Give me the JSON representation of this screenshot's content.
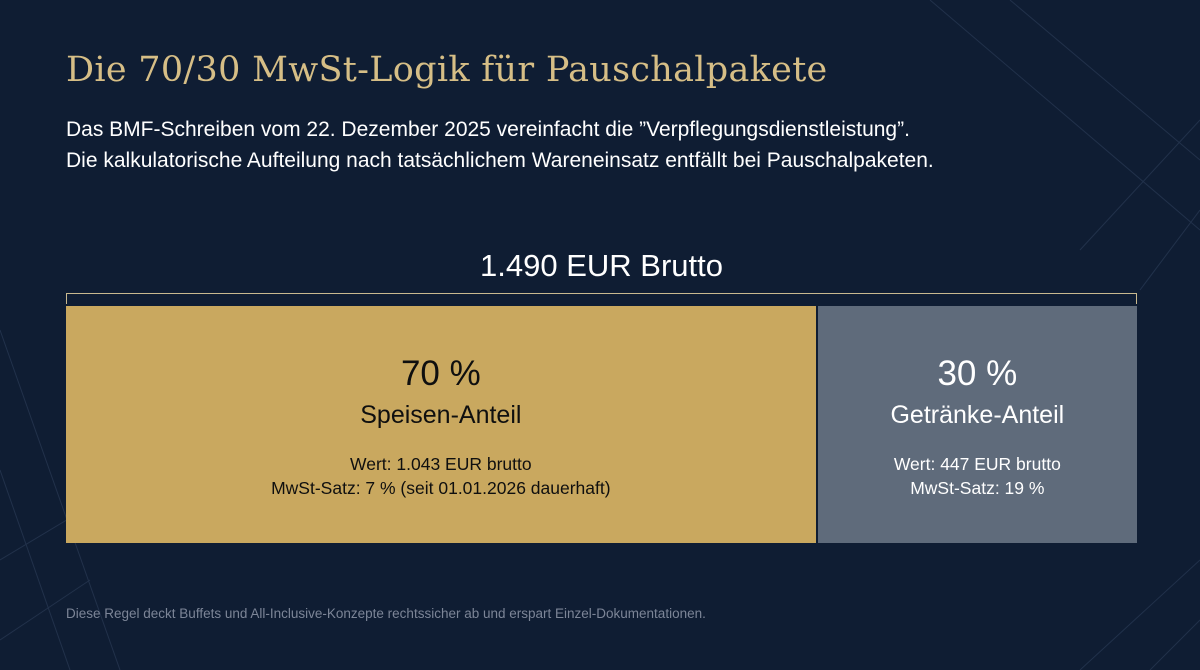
{
  "colors": {
    "background": "#0f1d33",
    "title": "#d6be86",
    "food_segment": "#c9a85f",
    "drinks_segment": "#5f6b7b",
    "bracket": "#c9b98f"
  },
  "title": "Die 70/30 MwSt-Logik für Pauschalpakete",
  "subtitle": {
    "line1": "Das BMF-Schreiben vom 22. Dezember 2025 vereinfacht die ”Verpflegungsdienstleistung”.",
    "line2": "Die kalkulatorische Aufteilung nach tatsächlichem Wareneinsatz entfällt bei Pauschalpaketen."
  },
  "total_label": "1.490 EUR Brutto",
  "segments": [
    {
      "share_percent": 70,
      "percent_label": "70 %",
      "name": "Speisen-Anteil",
      "value_text": "Wert: 1.043 EUR brutto",
      "vat_text": "MwSt-Satz: 7 % (seit 01.01.2026 dauerhaft)"
    },
    {
      "share_percent": 30,
      "percent_label": "30 %",
      "name": "Getränke-Anteil",
      "value_text": "Wert: 447 EUR brutto",
      "vat_text": "MwSt-Satz: 19 %"
    }
  ],
  "footer": "Diese Regel deckt Buffets und All-Inclusive-Konzepte rechtssicher ab und erspart Einzel-Dokumentationen."
}
